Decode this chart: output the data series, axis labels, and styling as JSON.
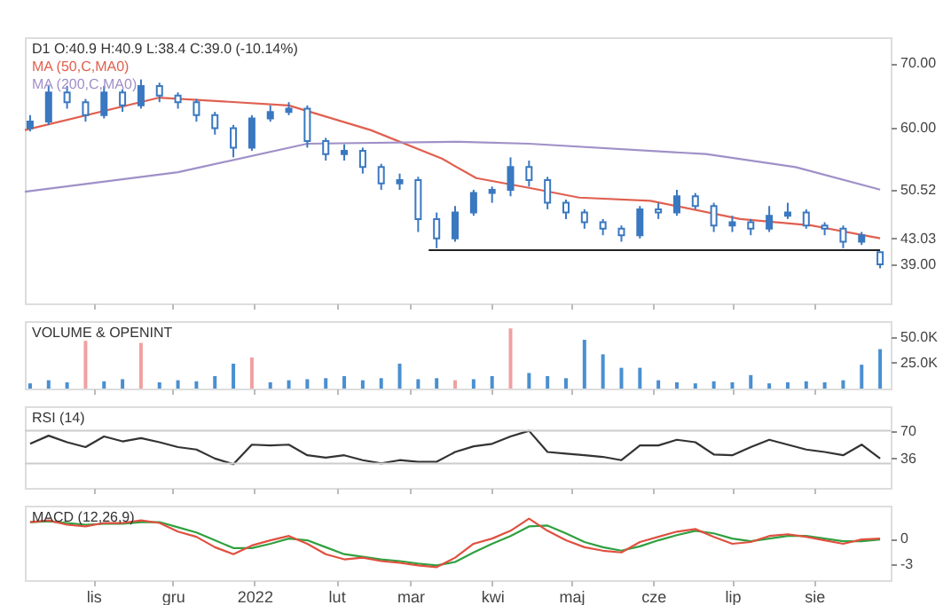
{
  "chart_data": [
    {
      "type": "candlestick",
      "title": "D1 O:40.9 H:40.9 L:38.4 C:39.0 (-10.14%)",
      "color": "#3a78c0",
      "legend": "top left",
      "grid": false,
      "tick_labels": "y",
      "x": [
        "2021-10-08",
        "2021-10-15",
        "2021-10-22",
        "2021-10-29",
        "2021-11-05",
        "2021-11-12",
        "2021-11-19",
        "2021-11-26",
        "2021-12-03",
        "2021-12-10",
        "2021-12-17",
        "2021-12-24",
        "2021-12-31",
        "2022-01-07",
        "2022-01-14",
        "2022-01-21",
        "2022-01-28",
        "2022-02-04",
        "2022-02-11",
        "2022-02-18",
        "2022-02-25",
        "2022-03-04",
        "2022-03-11",
        "2022-03-18",
        "2022-03-25",
        "2022-04-01",
        "2022-04-08",
        "2022-04-15",
        "2022-04-22",
        "2022-04-29",
        "2022-05-06",
        "2022-05-13",
        "2022-05-20",
        "2022-05-27",
        "2022-06-03",
        "2022-06-10",
        "2022-06-17",
        "2022-06-24",
        "2022-07-01",
        "2022-07-08",
        "2022-07-15",
        "2022-07-22",
        "2022-07-29",
        "2022-08-05",
        "2022-08-12",
        "2022-08-19",
        "2022-08-26"
      ],
      "ohlc": [
        [
          60,
          62,
          59.5,
          61
        ],
        [
          61,
          66.5,
          60.5,
          65.5
        ],
        [
          65.5,
          66.5,
          63,
          64
        ],
        [
          64,
          64.5,
          61,
          62
        ],
        [
          62,
          66.5,
          61.5,
          65.5
        ],
        [
          65.5,
          66,
          62.5,
          63.5
        ],
        [
          63.5,
          67.5,
          63,
          66.5
        ],
        [
          66.5,
          67,
          64,
          65
        ],
        [
          65,
          65.5,
          63,
          64
        ],
        [
          64,
          64.5,
          61,
          62
        ],
        [
          62,
          62.5,
          59,
          60
        ],
        [
          60,
          60.5,
          55.5,
          57
        ],
        [
          57,
          62,
          56.5,
          61.5
        ],
        [
          61.5,
          63.5,
          61,
          62.5
        ],
        [
          62.5,
          64,
          62,
          63
        ],
        [
          63,
          63.5,
          57,
          58
        ],
        [
          58,
          58.5,
          55,
          56
        ],
        [
          56,
          57.5,
          55,
          56.5
        ],
        [
          56.5,
          57,
          53,
          54
        ],
        [
          54,
          54.5,
          50.5,
          51.5
        ],
        [
          51.5,
          53,
          50.5,
          52
        ],
        [
          52,
          52.5,
          44,
          46
        ],
        [
          46,
          47,
          41.5,
          43
        ],
        [
          43,
          48,
          42.5,
          47
        ],
        [
          47,
          50.5,
          46.5,
          50
        ],
        [
          50,
          51,
          48.5,
          50.5
        ],
        [
          50.5,
          55.5,
          49.5,
          54
        ],
        [
          54,
          55,
          51,
          52
        ],
        [
          52,
          52.5,
          47.5,
          48.5
        ],
        [
          48.5,
          49,
          46,
          47
        ],
        [
          47,
          47.5,
          44.5,
          45.5
        ],
        [
          45.5,
          46,
          43.5,
          44.5
        ],
        [
          44.5,
          45,
          42.5,
          43.5
        ],
        [
          43.5,
          48,
          43,
          47.5
        ],
        [
          47.5,
          48.5,
          46,
          47
        ],
        [
          47,
          50.5,
          46.5,
          49.5
        ],
        [
          49.5,
          50,
          47.5,
          48
        ],
        [
          48,
          48.5,
          44,
          45
        ],
        [
          45,
          46.5,
          44,
          45.5
        ],
        [
          45.5,
          46,
          43.5,
          44.5
        ],
        [
          44.5,
          48,
          44,
          46.5
        ],
        [
          46.5,
          48.5,
          46,
          47
        ],
        [
          47,
          47.5,
          44.5,
          45
        ],
        [
          45,
          45.5,
          43.5,
          44.5
        ],
        [
          44.5,
          45,
          41.5,
          42.5
        ],
        [
          42.5,
          44,
          42,
          43.5
        ],
        [
          40.9,
          40.9,
          38.4,
          39.0
        ]
      ],
      "series": [
        {
          "name": "MA (50,C,MA0)",
          "type": "line",
          "color": "#e06050",
          "x": [
            "2021-10-06",
            "2021-11-26",
            "2022-01-14",
            "2022-02-14",
            "2022-03-13",
            "2022-03-26",
            "2022-04-15",
            "2022-05-04",
            "2022-05-31",
            "2022-07-04",
            "2022-07-31",
            "2022-08-26"
          ],
          "values": [
            59.7,
            64.7,
            63.5,
            59.7,
            55.3,
            52.3,
            50.8,
            49.3,
            48.8,
            46.0,
            45.0,
            43.03
          ]
        },
        {
          "name": "MA (200,C,MA0)",
          "type": "line",
          "color": "#a090c8",
          "x": [
            "2021-10-06",
            "2021-12-03",
            "2022-01-21",
            "2022-03-20",
            "2022-04-15",
            "2022-06-21",
            "2022-07-25",
            "2022-08-26"
          ],
          "values": [
            50.2,
            53.2,
            57.6,
            57.9,
            57.6,
            56.0,
            54.0,
            50.52
          ]
        },
        {
          "type": "line",
          "color": "#222222",
          "x": [
            "2022-03-08",
            "2022-08-26"
          ],
          "values": [
            41.2,
            41.2
          ]
        }
      ],
      "xlim": [
        "2021-10-06",
        "2022-08-30"
      ],
      "ylim": [
        33,
        74
      ],
      "yticks": [
        {
          "value": 70,
          "label": "70.00"
        },
        {
          "value": 60,
          "label": "60.00"
        },
        {
          "value": 50.52,
          "label": "50.52"
        },
        {
          "value": 43.03,
          "label": "43.03"
        },
        {
          "value": 39.0,
          "label": "39.00"
        }
      ],
      "xticks": [
        {
          "value": "2021-11-01",
          "label": null
        },
        {
          "value": "2021-12-01",
          "label": null
        },
        {
          "value": "2022-01-01",
          "label": null
        },
        {
          "value": "2022-02-01",
          "label": null
        },
        {
          "value": "2022-03-01",
          "label": null
        },
        {
          "value": "2022-04-01",
          "label": null
        },
        {
          "value": "2022-05-01",
          "label": null
        },
        {
          "value": "2022-06-01",
          "label": null
        },
        {
          "value": "2022-07-01",
          "label": null
        },
        {
          "value": "2022-08-01",
          "label": null
        }
      ]
    },
    {
      "type": "bar",
      "title": "VOLUME & OPENINT",
      "grid": false,
      "tick_labels": "y",
      "x": [
        "2021-10-08",
        "2021-10-15",
        "2021-10-22",
        "2021-10-29",
        "2021-11-05",
        "2021-11-12",
        "2021-11-19",
        "2021-11-26",
        "2021-12-03",
        "2021-12-10",
        "2021-12-17",
        "2021-12-24",
        "2021-12-31",
        "2022-01-07",
        "2022-01-14",
        "2022-01-21",
        "2022-01-28",
        "2022-02-04",
        "2022-02-11",
        "2022-02-18",
        "2022-02-25",
        "2022-03-04",
        "2022-03-11",
        "2022-03-18",
        "2022-03-25",
        "2022-04-01",
        "2022-04-08",
        "2022-04-15",
        "2022-04-22",
        "2022-04-29",
        "2022-05-06",
        "2022-05-13",
        "2022-05-20",
        "2022-05-27",
        "2022-06-03",
        "2022-06-10",
        "2022-06-17",
        "2022-06-24",
        "2022-07-01",
        "2022-07-08",
        "2022-07-15",
        "2022-07-22",
        "2022-07-29",
        "2022-08-05",
        "2022-08-12",
        "2022-08-19",
        "2022-08-26"
      ],
      "values": [
        5,
        8,
        6,
        46,
        7,
        9,
        44,
        6,
        8,
        7,
        12,
        24,
        30,
        6,
        8,
        9,
        10,
        12,
        8,
        10,
        24,
        9,
        10,
        8,
        9,
        12,
        58,
        15,
        12,
        10,
        47,
        33,
        20,
        20,
        8,
        6,
        5,
        7,
        6,
        13,
        5,
        6,
        7,
        6,
        8,
        23,
        38
      ],
      "colors": [
        "#4a8fd0",
        "#4a8fd0",
        "#4a8fd0",
        "#f0a0a0",
        "#4a8fd0",
        "#4a8fd0",
        "#f0a0a0",
        "#4a8fd0",
        "#4a8fd0",
        "#4a8fd0",
        "#4a8fd0",
        "#4a8fd0",
        "#f0a0a0",
        "#4a8fd0",
        "#4a8fd0",
        "#4a8fd0",
        "#4a8fd0",
        "#4a8fd0",
        "#4a8fd0",
        "#4a8fd0",
        "#4a8fd0",
        "#4a8fd0",
        "#4a8fd0",
        "#f0a0a0",
        "#4a8fd0",
        "#4a8fd0",
        "#f0a0a0",
        "#4a8fd0",
        "#4a8fd0",
        "#4a8fd0",
        "#4a8fd0",
        "#4a8fd0",
        "#4a8fd0",
        "#4a8fd0",
        "#4a8fd0",
        "#4a8fd0",
        "#4a8fd0",
        "#4a8fd0",
        "#4a8fd0",
        "#4a8fd0",
        "#4a8fd0",
        "#4a8fd0",
        "#4a8fd0",
        "#4a8fd0",
        "#4a8fd0",
        "#4a8fd0",
        "#4a8fd0"
      ],
      "xlim": [
        "2021-10-06",
        "2022-08-30"
      ],
      "ylim": [
        0,
        65
      ],
      "yticks": [
        {
          "value": 25,
          "label": "25.0K"
        },
        {
          "value": 50,
          "label": "50.0K"
        }
      ],
      "xticks": [
        {
          "value": "2021-11-01",
          "label": null
        },
        {
          "value": "2021-12-01",
          "label": null
        },
        {
          "value": "2022-01-01",
          "label": null
        },
        {
          "value": "2022-02-01",
          "label": null
        },
        {
          "value": "2022-03-01",
          "label": null
        },
        {
          "value": "2022-04-01",
          "label": null
        },
        {
          "value": "2022-05-01",
          "label": null
        },
        {
          "value": "2022-06-01",
          "label": null
        },
        {
          "value": "2022-07-01",
          "label": null
        },
        {
          "value": "2022-08-01",
          "label": null
        }
      ]
    },
    {
      "type": "line",
      "title": "RSI (14)",
      "color": "#333333",
      "grid": false,
      "tick_labels": "y",
      "x": [
        "2021-10-08",
        "2021-10-15",
        "2021-10-22",
        "2021-10-29",
        "2021-11-05",
        "2021-11-12",
        "2021-11-19",
        "2021-11-26",
        "2021-12-03",
        "2021-12-10",
        "2021-12-17",
        "2021-12-24",
        "2021-12-31",
        "2022-01-07",
        "2022-01-14",
        "2022-01-21",
        "2022-01-28",
        "2022-02-04",
        "2022-02-11",
        "2022-02-18",
        "2022-02-25",
        "2022-03-04",
        "2022-03-11",
        "2022-03-18",
        "2022-03-25",
        "2022-04-01",
        "2022-04-08",
        "2022-04-15",
        "2022-04-22",
        "2022-04-29",
        "2022-05-06",
        "2022-05-13",
        "2022-05-20",
        "2022-05-27",
        "2022-06-03",
        "2022-06-10",
        "2022-06-17",
        "2022-06-24",
        "2022-07-01",
        "2022-07-08",
        "2022-07-15",
        "2022-07-22",
        "2022-07-29",
        "2022-08-05",
        "2022-08-12",
        "2022-08-19",
        "2022-08-26"
      ],
      "values": [
        54,
        64,
        56,
        50,
        63,
        57,
        61,
        56,
        50,
        47,
        36,
        29,
        53,
        52,
        53,
        40,
        37,
        40,
        34,
        30,
        34,
        32,
        32,
        44,
        51,
        54,
        63,
        70,
        44,
        42,
        40,
        38,
        34,
        52,
        52,
        59,
        56,
        41,
        40,
        50,
        59,
        53,
        47,
        44,
        40,
        53,
        36
      ],
      "xlim": [
        "2021-10-06",
        "2022-08-30"
      ],
      "ylim": [
        0,
        100
      ],
      "yticks": [
        36,
        70
      ],
      "ref_lines": [
        {
          "axis": "y",
          "value": 30,
          "color": "#cccccc"
        },
        {
          "axis": "y",
          "value": 70,
          "color": "#cccccc"
        }
      ],
      "xticks": [
        {
          "value": "2021-11-01",
          "label": null
        },
        {
          "value": "2021-12-01",
          "label": null
        },
        {
          "value": "2022-01-01",
          "label": null
        },
        {
          "value": "2022-02-01",
          "label": null
        },
        {
          "value": "2022-03-01",
          "label": null
        },
        {
          "value": "2022-04-01",
          "label": null
        },
        {
          "value": "2022-05-01",
          "label": null
        },
        {
          "value": "2022-06-01",
          "label": null
        },
        {
          "value": "2022-07-01",
          "label": null
        },
        {
          "value": "2022-08-01",
          "label": null
        }
      ]
    },
    {
      "type": "line",
      "title": "MACD (12,26,9)",
      "grid": false,
      "x": [
        "2021-10-08",
        "2021-10-15",
        "2021-10-22",
        "2021-10-29",
        "2021-11-05",
        "2021-11-12",
        "2021-11-19",
        "2021-11-26",
        "2021-12-03",
        "2021-12-10",
        "2021-12-17",
        "2021-12-24",
        "2021-12-31",
        "2022-01-07",
        "2022-01-14",
        "2022-01-21",
        "2022-01-28",
        "2022-02-04",
        "2022-02-11",
        "2022-02-18",
        "2022-02-25",
        "2022-03-04",
        "2022-03-11",
        "2022-03-18",
        "2022-03-25",
        "2022-04-01",
        "2022-04-08",
        "2022-04-15",
        "2022-04-22",
        "2022-04-29",
        "2022-05-06",
        "2022-05-13",
        "2022-05-20",
        "2022-05-27",
        "2022-06-03",
        "2022-06-10",
        "2022-06-17",
        "2022-06-24",
        "2022-07-01",
        "2022-07-08",
        "2022-07-15",
        "2022-07-22",
        "2022-07-29",
        "2022-08-05",
        "2022-08-12",
        "2022-08-19",
        "2022-08-26"
      ],
      "series": [
        {
          "color": "#30a040",
          "values": [
            1.9,
            2.0,
            1.8,
            1.6,
            1.7,
            1.7,
            1.9,
            1.9,
            1.3,
            0.7,
            -0.2,
            -1.1,
            -1.1,
            -0.6,
            0.0,
            -0.2,
            -1.0,
            -1.8,
            -2.1,
            -2.4,
            -2.6,
            -2.9,
            -3.1,
            -2.7,
            -1.6,
            -0.6,
            0.3,
            1.4,
            1.5,
            0.6,
            -0.4,
            -1.0,
            -1.4,
            -0.9,
            -0.2,
            0.4,
            0.9,
            0.6,
            0.0,
            -0.3,
            0.0,
            0.3,
            0.3,
            0.0,
            -0.3,
            -0.3,
            -0.1
          ]
        },
        {
          "color": "#e05040",
          "values": [
            1.9,
            2.1,
            1.6,
            1.4,
            1.8,
            1.8,
            2.1,
            1.8,
            0.8,
            0.2,
            -1.0,
            -1.8,
            -0.8,
            -0.2,
            0.3,
            -0.6,
            -1.8,
            -2.4,
            -2.2,
            -2.6,
            -2.8,
            -3.1,
            -3.3,
            -2.2,
            -0.6,
            0,
            0.9,
            2.3,
            0.9,
            -0.2,
            -1.0,
            -1.4,
            -1.6,
            -0.4,
            0.2,
            0.8,
            1.1,
            0.2,
            -0.6,
            -0.4,
            0.3,
            0.5,
            0.2,
            -0.2,
            -0.6,
            -0.1,
            0
          ]
        }
      ],
      "xlim": [
        "2021-10-06",
        "2022-08-30"
      ],
      "ylim": [
        -4.8,
        3.8
      ],
      "yticks": [
        0,
        -3
      ],
      "xticks": [
        {
          "value": "2021-11-01",
          "label": "lis"
        },
        {
          "value": "2021-12-01",
          "label": "gru"
        },
        {
          "value": "2022-01-01",
          "label": "2022"
        },
        {
          "value": "2022-02-01",
          "label": "lut"
        },
        {
          "value": "2022-03-01",
          "label": "mar"
        },
        {
          "value": "2022-04-01",
          "label": "kwi"
        },
        {
          "value": "2022-05-01",
          "label": "maj"
        },
        {
          "value": "2022-06-01",
          "label": "cze"
        },
        {
          "value": "2022-07-01",
          "label": "lip"
        },
        {
          "value": "2022-08-01",
          "label": "sie"
        }
      ]
    }
  ]
}
